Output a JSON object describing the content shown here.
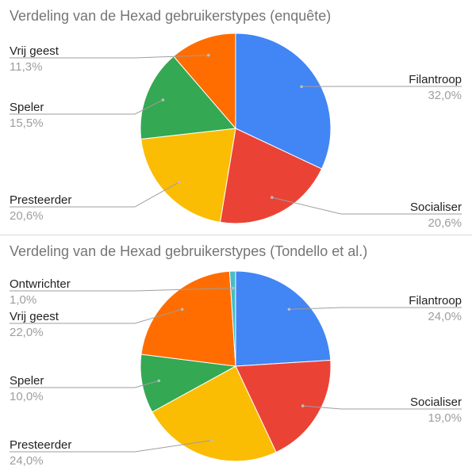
{
  "chart_data": [
    {
      "type": "pie",
      "title": "Verdeling van de Hexad gebruikerstypes (enquête)",
      "slices": [
        {
          "name": "Filantroop",
          "value": 32.0,
          "label": "32,0%",
          "color": "#4285f4"
        },
        {
          "name": "Socialiser",
          "value": 20.6,
          "label": "20,6%",
          "color": "#ea4335"
        },
        {
          "name": "Presteerder",
          "value": 20.6,
          "label": "20,6%",
          "color": "#fbbc04"
        },
        {
          "name": "Speler",
          "value": 15.5,
          "label": "15,5%",
          "color": "#34a853"
        },
        {
          "name": "Vrij geest",
          "value": 11.3,
          "label": "11,3%",
          "color": "#ff6d01"
        }
      ]
    },
    {
      "type": "pie",
      "title": "Verdeling van de Hexad gebruikerstypes (Tondello et al.)",
      "slices": [
        {
          "name": "Filantroop",
          "value": 24.0,
          "label": "24,0%",
          "color": "#4285f4"
        },
        {
          "name": "Socialiser",
          "value": 19.0,
          "label": "19,0%",
          "color": "#ea4335"
        },
        {
          "name": "Presteerder",
          "value": 24.0,
          "label": "24,0%",
          "color": "#fbbc04"
        },
        {
          "name": "Speler",
          "value": 10.0,
          "label": "10,0%",
          "color": "#34a853"
        },
        {
          "name": "Vrij geest",
          "value": 22.0,
          "label": "22,0%",
          "color": "#ff6d01"
        },
        {
          "name": "Ontwrichter",
          "value": 1.0,
          "label": "1,0%",
          "color": "#46bdc6"
        }
      ]
    }
  ]
}
